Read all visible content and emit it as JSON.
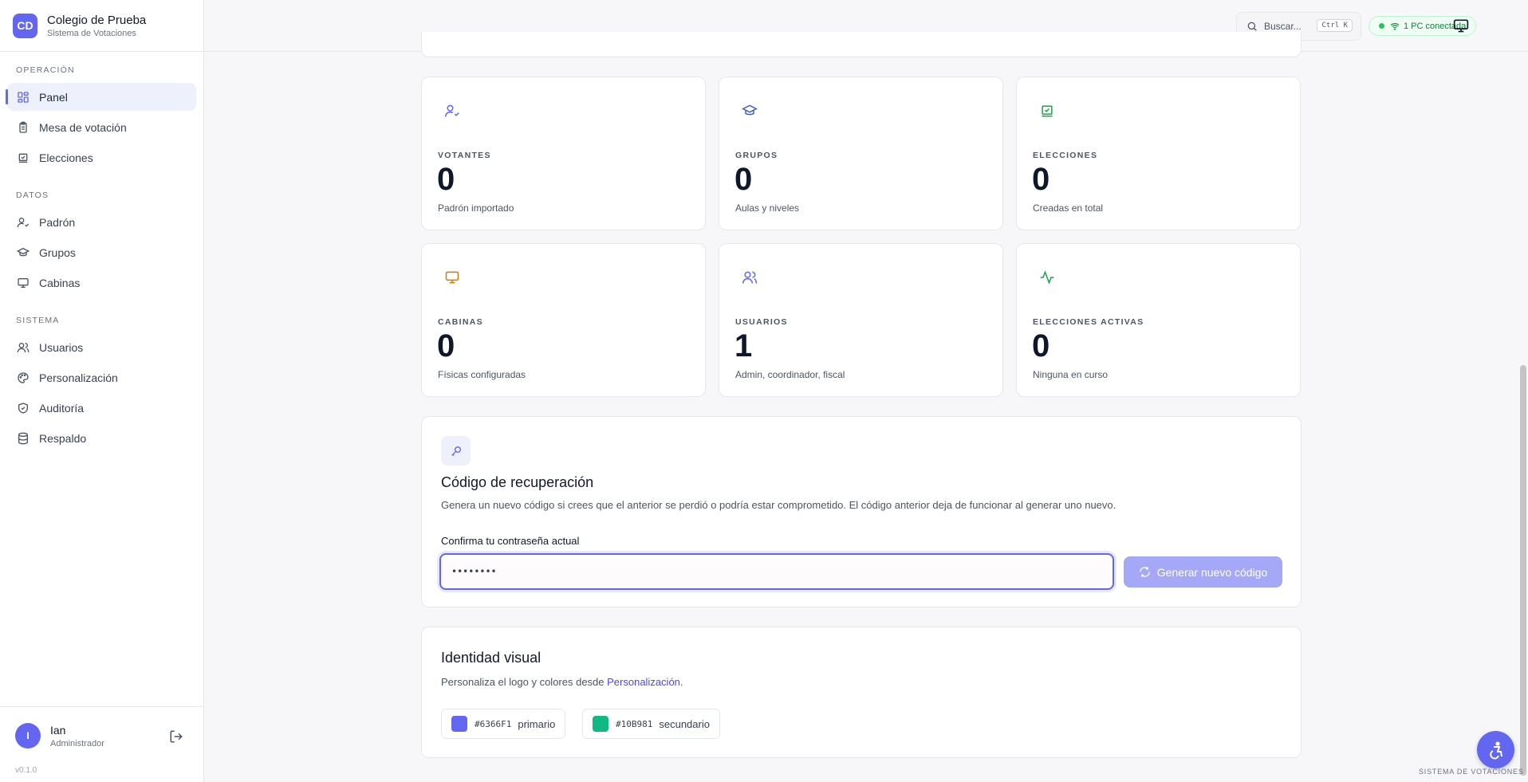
{
  "brand": {
    "initials": "CD",
    "name": "Colegio de Prueba",
    "subtitle": "Sistema de Votaciones"
  },
  "sidebar": {
    "sections": [
      {
        "label": "OPERACIÓN",
        "items": [
          {
            "label": "Panel",
            "icon": "grid-icon",
            "active": true
          },
          {
            "label": "Mesa de votación",
            "icon": "clipboard-icon"
          },
          {
            "label": "Elecciones",
            "icon": "ballot-box-icon"
          }
        ]
      },
      {
        "label": "DATOS",
        "items": [
          {
            "label": "Padrón",
            "icon": "user-check-icon"
          },
          {
            "label": "Grupos",
            "icon": "graduation-cap-icon"
          },
          {
            "label": "Cabinas",
            "icon": "monitor-icon"
          }
        ]
      },
      {
        "label": "SISTEMA",
        "items": [
          {
            "label": "Usuarios",
            "icon": "users-icon"
          },
          {
            "label": "Personalización",
            "icon": "palette-icon"
          },
          {
            "label": "Auditoría",
            "icon": "shield-check-icon"
          },
          {
            "label": "Respaldo",
            "icon": "database-icon"
          }
        ]
      }
    ]
  },
  "user": {
    "initial": "I",
    "name": "Ian",
    "role": "Administrador",
    "version": "v0.1.0"
  },
  "topbar": {
    "search_placeholder": "Buscar...",
    "shortcut": "Ctrl K",
    "connection": "1 PC conectada"
  },
  "stats": [
    {
      "label": "VOTANTES",
      "value": "0",
      "sub": "Padrón importado",
      "icon": "user-check-icon",
      "color": "#6366F1"
    },
    {
      "label": "GRUPOS",
      "value": "0",
      "sub": "Aulas y niveles",
      "icon": "graduation-cap-icon",
      "color": "#3B5BDB"
    },
    {
      "label": "ELECCIONES",
      "value": "0",
      "sub": "Creadas en total",
      "icon": "ballot-box-icon",
      "color": "#16A34A"
    },
    {
      "label": "CABINAS",
      "value": "0",
      "sub": "Físicas configuradas",
      "icon": "monitor-icon",
      "color": "#D97706"
    },
    {
      "label": "USUARIOS",
      "value": "1",
      "sub": "Admin, coordinador, fiscal",
      "icon": "users-icon",
      "color": "#6366F1"
    },
    {
      "label": "ELECCIONES ACTIVAS",
      "value": "0",
      "sub": "Ninguna en curso",
      "icon": "activity-icon",
      "color": "#16A34A"
    }
  ],
  "recovery": {
    "title": "Código de recuperación",
    "description": "Genera un nuevo código si crees que el anterior se perdió o podría estar comprometido. El código anterior deja de funcionar al generar uno nuevo.",
    "field_label": "Confirma tu contraseña actual",
    "password_value": "••••••••",
    "button_label": "Generar nuevo código"
  },
  "identity": {
    "title": "Identidad visual",
    "description_prefix": "Personaliza el logo y colores desde ",
    "link": "Personalización",
    "description_suffix": ".",
    "colors": [
      {
        "hex": "#6366F1",
        "role": "primario"
      },
      {
        "hex": "#10B981",
        "role": "secundario"
      }
    ]
  },
  "footer": "SISTEMA DE VOTACIONES"
}
